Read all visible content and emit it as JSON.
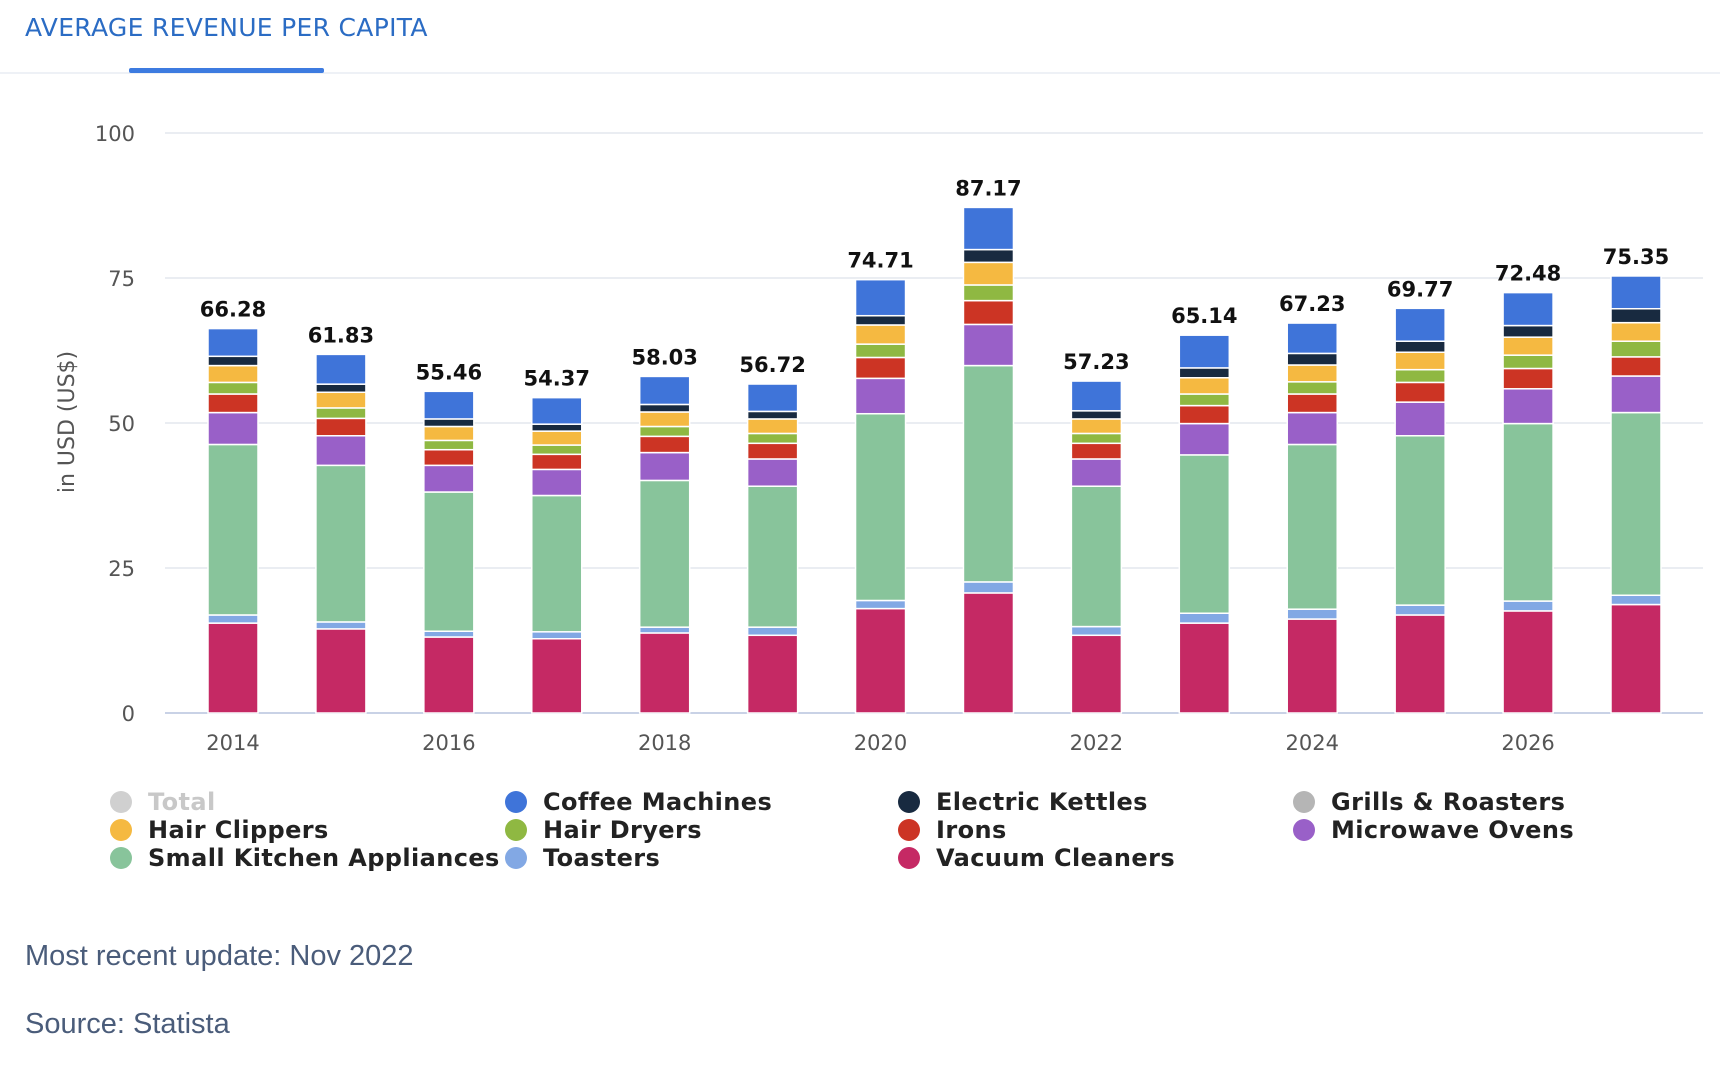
{
  "header": {
    "tab_title": "AVERAGE REVENUE PER CAPITA"
  },
  "footer": {
    "update": "Most recent update: Nov 2022",
    "source": "Source: Statista"
  },
  "legend": [
    {
      "name": "Total",
      "color": "#cccccc",
      "enabled": false
    },
    {
      "name": "Coffee Machines",
      "color": "#3f74d9",
      "enabled": true
    },
    {
      "name": "Electric Kettles",
      "color": "#182a40",
      "enabled": true
    },
    {
      "name": "Grills & Roasters",
      "color": "#b5b5b5",
      "enabled": true
    },
    {
      "name": "Hair Clippers",
      "color": "#f5b941",
      "enabled": true
    },
    {
      "name": "Hair Dryers",
      "color": "#8fb842",
      "enabled": true
    },
    {
      "name": "Irons",
      "color": "#cc3424",
      "enabled": true
    },
    {
      "name": "Microwave Ovens",
      "color": "#9960c8",
      "enabled": true
    },
    {
      "name": "Small Kitchen Appliances",
      "color": "#88c49b",
      "enabled": true
    },
    {
      "name": "Toasters",
      "color": "#82a8e4",
      "enabled": true
    },
    {
      "name": "Vacuum Cleaners",
      "color": "#c52964",
      "enabled": true
    }
  ],
  "chart_data": {
    "type": "bar",
    "stacked": true,
    "title": "",
    "xlabel": "",
    "ylabel": "in USD (US$)",
    "ylim": [
      0,
      100
    ],
    "yticks": [
      0,
      25,
      50,
      75,
      100
    ],
    "xticks": [
      "2014",
      "2016",
      "2018",
      "2020",
      "2022",
      "2024",
      "2026"
    ],
    "categories": [
      "2014",
      "2015",
      "2016",
      "2017",
      "2018",
      "2019",
      "2020",
      "2021",
      "2022",
      "2023",
      "2024",
      "2025",
      "2026",
      "2027"
    ],
    "totals": [
      "66.28",
      "61.83",
      "55.46",
      "54.37",
      "58.03",
      "56.72",
      "74.71",
      "87.17",
      "57.23",
      "65.14",
      "67.23",
      "69.77",
      "72.48",
      "75.35"
    ],
    "series": [
      {
        "name": "Vacuum Cleaners",
        "color": "#c52964",
        "values": [
          15.5,
          14.5,
          13.1,
          12.8,
          13.8,
          13.4,
          18.0,
          20.7,
          13.4,
          15.5,
          16.2,
          16.9,
          17.6,
          18.7
        ]
      },
      {
        "name": "Toasters",
        "color": "#82a8e4",
        "values": [
          1.4,
          1.2,
          1.0,
          1.2,
          1.0,
          1.4,
          1.4,
          1.9,
          1.5,
          1.7,
          1.7,
          1.7,
          1.7,
          1.6
        ]
      },
      {
        "name": "Small Kitchen Appliances",
        "color": "#88c49b",
        "values": [
          29.4,
          27.0,
          24.0,
          23.5,
          25.3,
          24.3,
          32.2,
          37.3,
          24.2,
          27.3,
          28.4,
          29.2,
          30.6,
          31.5
        ]
      },
      {
        "name": "Microwave Ovens",
        "color": "#9960c8",
        "values": [
          5.5,
          5.1,
          4.6,
          4.5,
          4.8,
          4.7,
          6.1,
          7.1,
          4.7,
          5.4,
          5.5,
          5.8,
          6.0,
          6.3
        ]
      },
      {
        "name": "Irons",
        "color": "#cc3424",
        "values": [
          3.2,
          3.0,
          2.7,
          2.6,
          2.8,
          2.7,
          3.6,
          4.1,
          2.7,
          3.1,
          3.2,
          3.4,
          3.5,
          3.3
        ]
      },
      {
        "name": "Hair Dryers",
        "color": "#8fb842",
        "values": [
          2.0,
          1.8,
          1.6,
          1.6,
          1.7,
          1.7,
          2.3,
          2.7,
          1.7,
          2.0,
          2.1,
          2.2,
          2.3,
          2.7
        ]
      },
      {
        "name": "Hair Clippers",
        "color": "#f5b941",
        "values": [
          2.9,
          2.7,
          2.4,
          2.4,
          2.5,
          2.5,
          3.3,
          3.9,
          2.5,
          2.8,
          2.9,
          3.0,
          3.1,
          3.2
        ]
      },
      {
        "name": "Grills & Roasters",
        "color": "#b5b5b5",
        "values": [
          0,
          0,
          0,
          0,
          0,
          0,
          0,
          0,
          0,
          0,
          0,
          0,
          0,
          0
        ]
      },
      {
        "name": "Electric Kettles",
        "color": "#182a40",
        "values": [
          1.6,
          1.4,
          1.3,
          1.2,
          1.3,
          1.3,
          1.6,
          2.2,
          1.4,
          1.7,
          2.0,
          1.9,
          2.0,
          2.4
        ]
      },
      {
        "name": "Coffee Machines",
        "color": "#3f74d9",
        "values": [
          4.78,
          5.13,
          4.76,
          4.57,
          4.83,
          4.72,
          6.21,
          7.27,
          5.13,
          5.64,
          5.23,
          5.67,
          5.68,
          5.65
        ]
      }
    ]
  }
}
